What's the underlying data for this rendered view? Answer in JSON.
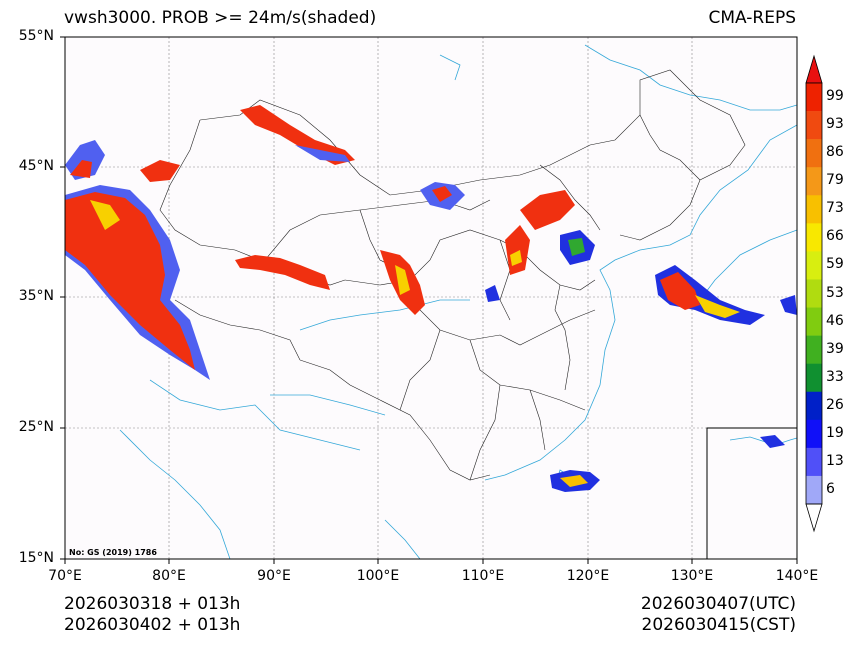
{
  "title": {
    "left": "vwsh3000. PROB >= 24m/s(shaded)",
    "right": "CMA-REPS"
  },
  "map": {
    "lat_ticks": [
      "55°N",
      "45°N",
      "35°N",
      "25°N",
      "15°N"
    ],
    "lon_ticks": [
      "70°E",
      "80°E",
      "90°E",
      "100°E",
      "110°E",
      "120°E",
      "130°E",
      "140°E"
    ],
    "extent": {
      "lon_min": 70,
      "lon_max": 140,
      "lat_min": 15,
      "lat_max": 55
    },
    "note": "No: GS (2019) 1786"
  },
  "colorbar": {
    "labels": [
      "99",
      "93",
      "86",
      "79",
      "73",
      "66",
      "59",
      "53",
      "46",
      "39",
      "33",
      "26",
      "19",
      "13",
      "6"
    ],
    "colors": [
      "#ee2200",
      "#f04a10",
      "#f07010",
      "#f49818",
      "#f8c000",
      "#f8e800",
      "#d8ee10",
      "#b0dc10",
      "#80cc10",
      "#40b020",
      "#109030",
      "#0020c8",
      "#1010f8",
      "#5050f8",
      "#a0a8f8"
    ],
    "top_arrow_color": "#e81010",
    "bottom_arrow_color": "#ffffff"
  },
  "footer": {
    "init_utc": "2026030318  +  013h",
    "init_cst": "2026030402  +  013h",
    "valid_utc": "2026030407(UTC)",
    "valid_cst": "2026030415(CST)"
  }
}
